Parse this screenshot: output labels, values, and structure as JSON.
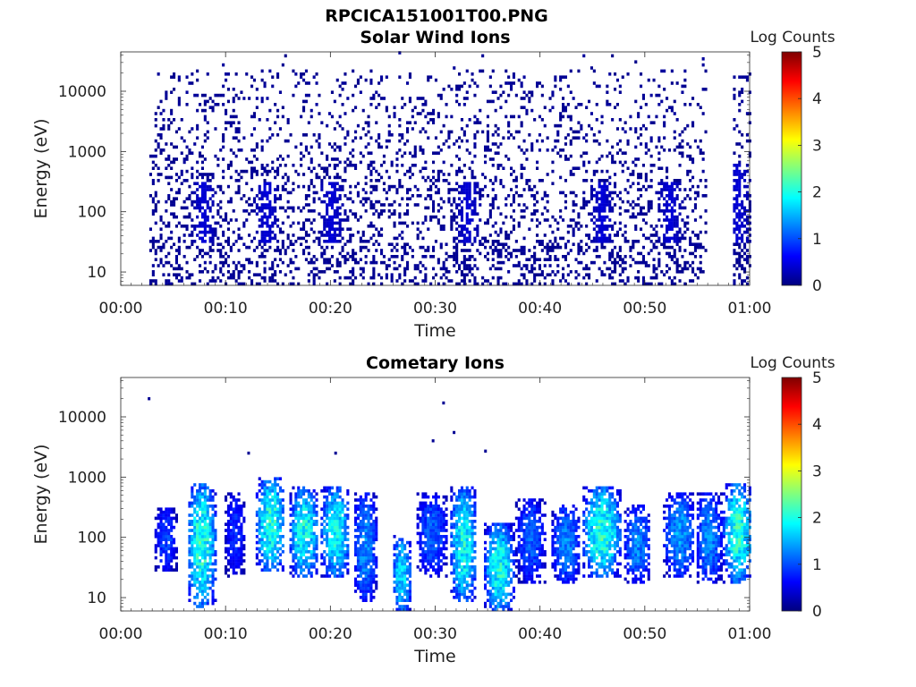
{
  "figure": {
    "title": "RPCICA151001T00.PNG"
  },
  "colormap": [
    "#00007f",
    "#0000ff",
    "#007fff",
    "#00ffff",
    "#7fff7f",
    "#ffff00",
    "#ff7f00",
    "#ff0000",
    "#7f0000"
  ],
  "chart_data": [
    {
      "type": "heatmap",
      "title": "Solar Wind Ions",
      "xlabel": "Time",
      "ylabel": "Energy (eV)",
      "x_unit": "minutes",
      "x_range": [
        0,
        60
      ],
      "x_ticks": [
        0,
        10,
        20,
        30,
        40,
        50,
        60
      ],
      "x_tick_labels": [
        "00:00",
        "00:10",
        "00:20",
        "00:30",
        "00:40",
        "00:50",
        "01:00"
      ],
      "y_scale": "log",
      "y_range": [
        6,
        45000
      ],
      "y_ticks": [
        10,
        100,
        1000,
        10000
      ],
      "y_tick_labels": [
        "10",
        "100",
        "1000",
        "10000"
      ],
      "colorbar": {
        "label": "Log Counts",
        "range": [
          0,
          5
        ],
        "ticks": [
          0,
          1,
          2,
          3,
          4,
          5
        ],
        "tick_labels": [
          "0",
          "1",
          "2",
          "3",
          "4",
          "5"
        ]
      },
      "data_coverage_minutes": [
        [
          2.7,
          55.8
        ],
        [
          58.2,
          60
        ]
      ],
      "typical_log_counts": 0.1,
      "enhanced_bursts": [
        {
          "center_min": 7.8,
          "energy_range_eV": [
            30,
            300
          ]
        },
        {
          "center_min": 13.8,
          "energy_range_eV": [
            30,
            300
          ]
        },
        {
          "center_min": 20.0,
          "energy_range_eV": [
            30,
            300
          ]
        },
        {
          "center_min": 33.0,
          "energy_range_eV": [
            30,
            300
          ]
        },
        {
          "center_min": 45.8,
          "energy_range_eV": [
            30,
            300
          ]
        },
        {
          "center_min": 52.3,
          "energy_range_eV": [
            30,
            300
          ]
        },
        {
          "center_min": 58.8,
          "energy_range_eV": [
            30,
            600
          ]
        }
      ]
    },
    {
      "type": "heatmap",
      "title": "Cometary Ions",
      "xlabel": "Time",
      "ylabel": "Energy (eV)",
      "x_unit": "minutes",
      "x_range": [
        0,
        60
      ],
      "x_ticks": [
        0,
        10,
        20,
        30,
        40,
        50,
        60
      ],
      "x_tick_labels": [
        "00:00",
        "00:10",
        "00:20",
        "00:30",
        "00:40",
        "00:50",
        "01:00"
      ],
      "y_scale": "log",
      "y_range": [
        6,
        45000
      ],
      "y_ticks": [
        10,
        100,
        1000,
        10000
      ],
      "y_tick_labels": [
        "10",
        "100",
        "1000",
        "10000"
      ],
      "colorbar": {
        "label": "Log Counts",
        "range": [
          0,
          5
        ],
        "ticks": [
          0,
          1,
          2,
          3,
          4,
          5
        ],
        "tick_labels": [
          "0",
          "1",
          "2",
          "3",
          "4",
          "5"
        ]
      },
      "blobs": [
        {
          "center_min": 4.2,
          "halfwidth_min": 0.9,
          "energy_range_eV": [
            30,
            280
          ],
          "peak_log_counts": 0.9
        },
        {
          "center_min": 7.6,
          "halfwidth_min": 1.2,
          "energy_range_eV": [
            8,
            700
          ],
          "peak_log_counts": 1.9
        },
        {
          "center_min": 10.8,
          "halfwidth_min": 0.8,
          "energy_range_eV": [
            25,
            500
          ],
          "peak_log_counts": 0.8
        },
        {
          "center_min": 14.2,
          "halfwidth_min": 1.2,
          "energy_range_eV": [
            30,
            900
          ],
          "peak_log_counts": 1.9
        },
        {
          "center_min": 17.4,
          "halfwidth_min": 1.2,
          "energy_range_eV": [
            25,
            600
          ],
          "peak_log_counts": 1.8
        },
        {
          "center_min": 20.4,
          "halfwidth_min": 1.2,
          "energy_range_eV": [
            25,
            600
          ],
          "peak_log_counts": 1.8
        },
        {
          "center_min": 23.2,
          "halfwidth_min": 1.0,
          "energy_range_eV": [
            10,
            500
          ],
          "peak_log_counts": 1.2
        },
        {
          "center_min": 26.7,
          "halfwidth_min": 0.8,
          "energy_range_eV": [
            6,
            100
          ],
          "peak_log_counts": 1.6
        },
        {
          "center_min": 29.6,
          "halfwidth_min": 1.3,
          "energy_range_eV": [
            25,
            500
          ],
          "peak_log_counts": 1.0
        },
        {
          "center_min": 32.6,
          "halfwidth_min": 1.1,
          "energy_range_eV": [
            10,
            600
          ],
          "peak_log_counts": 1.8
        },
        {
          "center_min": 36.0,
          "halfwidth_min": 1.2,
          "energy_range_eV": [
            6,
            150
          ],
          "peak_log_counts": 1.8
        },
        {
          "center_min": 39.0,
          "halfwidth_min": 1.2,
          "energy_range_eV": [
            20,
            400
          ],
          "peak_log_counts": 1.0
        },
        {
          "center_min": 42.4,
          "halfwidth_min": 1.2,
          "energy_range_eV": [
            20,
            300
          ],
          "peak_log_counts": 1.2
        },
        {
          "center_min": 45.8,
          "halfwidth_min": 1.6,
          "energy_range_eV": [
            25,
            600
          ],
          "peak_log_counts": 1.9
        },
        {
          "center_min": 49.2,
          "halfwidth_min": 1.1,
          "energy_range_eV": [
            20,
            300
          ],
          "peak_log_counts": 1.2
        },
        {
          "center_min": 53.2,
          "halfwidth_min": 1.3,
          "energy_range_eV": [
            25,
            500
          ],
          "peak_log_counts": 1.3
        },
        {
          "center_min": 56.0,
          "halfwidth_min": 1.1,
          "energy_range_eV": [
            20,
            500
          ],
          "peak_log_counts": 1.2
        },
        {
          "center_min": 58.8,
          "halfwidth_min": 1.2,
          "energy_range_eV": [
            20,
            700
          ],
          "peak_log_counts": 1.9
        }
      ],
      "sparse_points": [
        {
          "time_min": 2.7,
          "energy_eV": 20000
        },
        {
          "time_min": 12.2,
          "energy_eV": 2500
        },
        {
          "time_min": 20.5,
          "energy_eV": 2500
        },
        {
          "time_min": 30.8,
          "energy_eV": 17000
        },
        {
          "time_min": 29.8,
          "energy_eV": 4000
        },
        {
          "time_min": 31.8,
          "energy_eV": 5500
        },
        {
          "time_min": 34.8,
          "energy_eV": 2700
        }
      ]
    }
  ]
}
